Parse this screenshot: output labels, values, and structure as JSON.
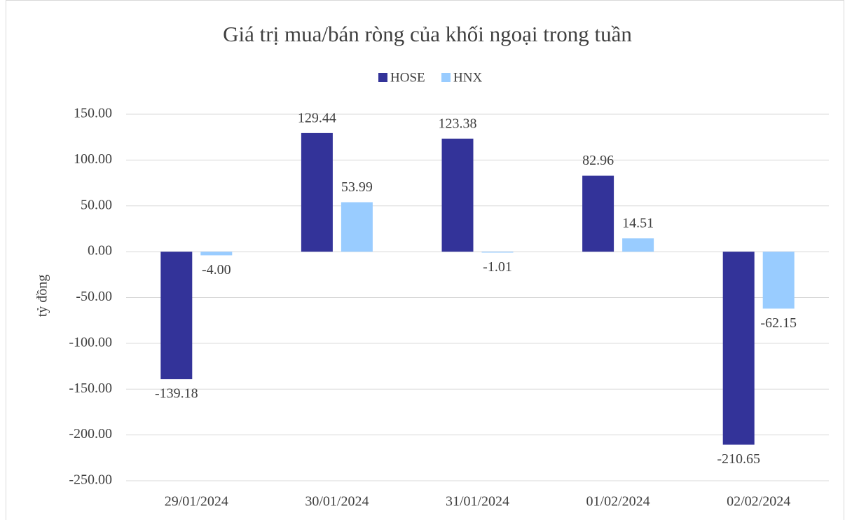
{
  "chart_data": {
    "type": "bar",
    "title": "Giá trị mua/bán ròng của khối ngoại trong tuần",
    "y_label": "tỷ đồng",
    "categories": [
      "29/01/2024",
      "30/01/2024",
      "31/01/2024",
      "01/02/2024",
      "02/02/2024"
    ],
    "series": [
      {
        "name": "HOSE",
        "color": "#333399",
        "values": [
          -139.18,
          129.44,
          123.38,
          82.96,
          -210.65
        ],
        "value_labels": [
          "-139.18",
          "129.44",
          "123.38",
          "82.96",
          "-210.65"
        ]
      },
      {
        "name": "HNX",
        "color": "#99ccff",
        "values": [
          -4.0,
          53.99,
          -1.01,
          14.51,
          -62.15
        ],
        "value_labels": [
          "-4.00",
          "53.99",
          "-1.01",
          "14.51",
          "-62.15"
        ]
      }
    ],
    "ylim": [
      -250,
      150
    ],
    "yticks": [
      {
        "value": -250,
        "label": "-250.00"
      },
      {
        "value": -200,
        "label": "-200.00"
      },
      {
        "value": -150,
        "label": "-150.00"
      },
      {
        "value": -100,
        "label": "-100.00"
      },
      {
        "value": -50,
        "label": "-50.00"
      },
      {
        "value": 0,
        "label": "0.00"
      },
      {
        "value": 50,
        "label": "50.00"
      },
      {
        "value": 100,
        "label": "100.00"
      },
      {
        "value": 150,
        "label": "150.00"
      }
    ],
    "grid": true,
    "legend": "top"
  }
}
